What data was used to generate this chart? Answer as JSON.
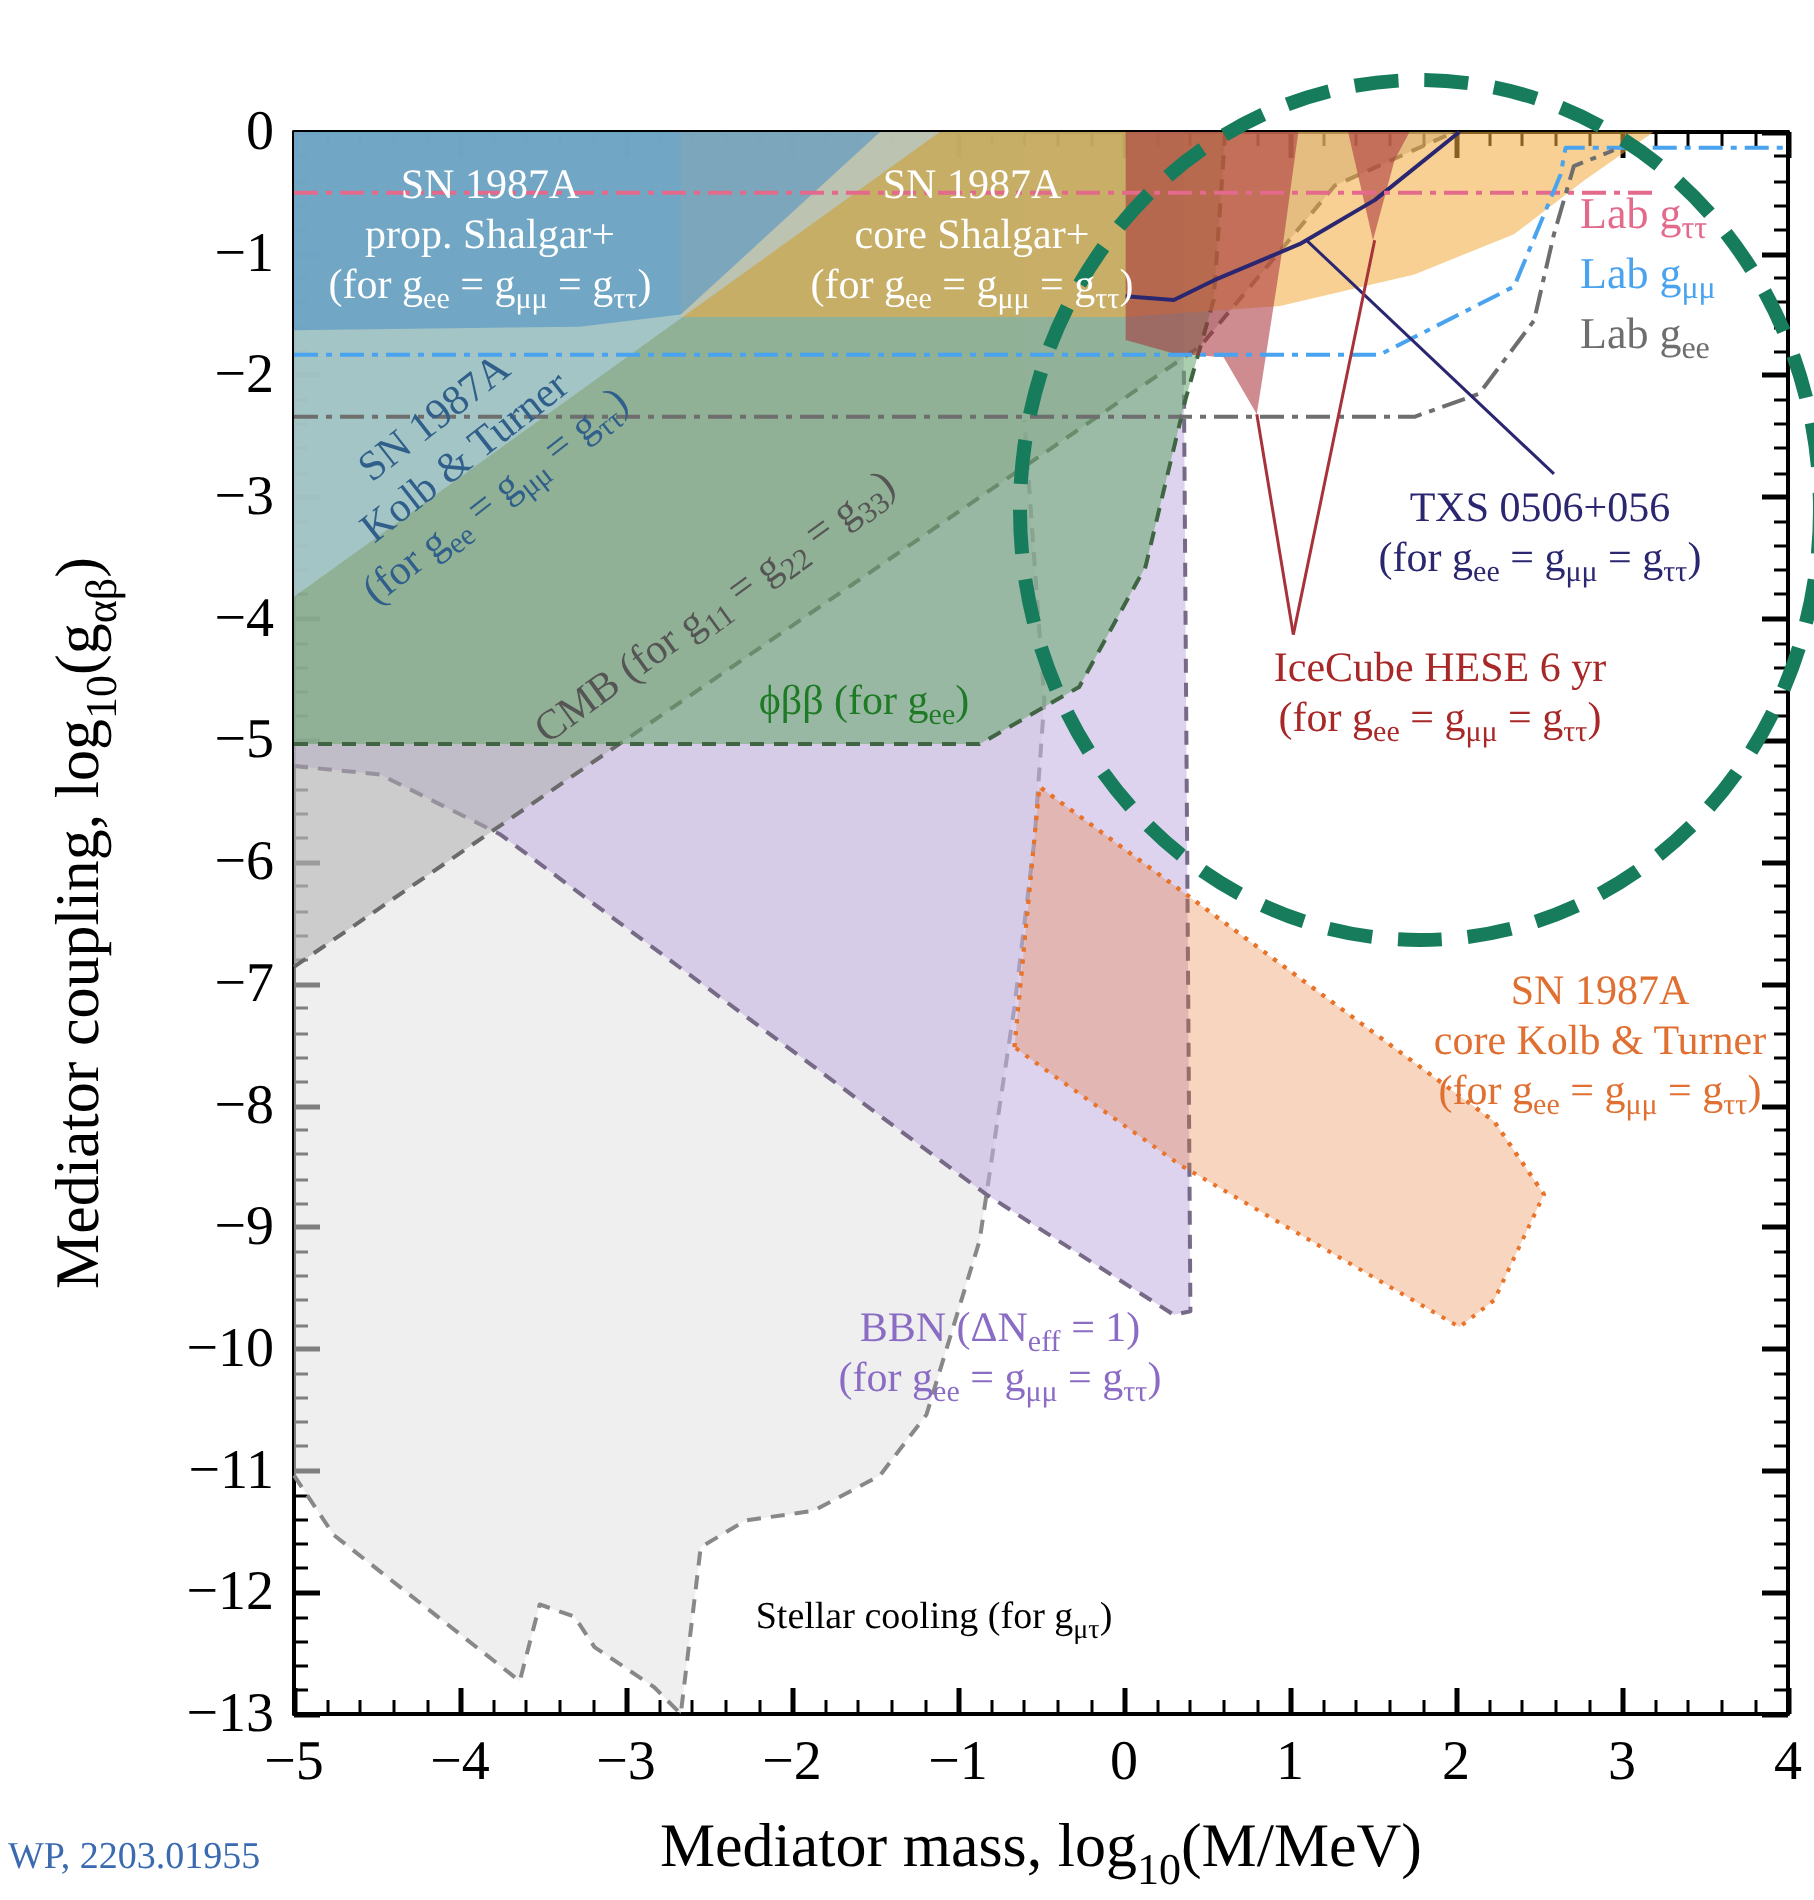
{
  "chart_data": {
    "type": "area",
    "xlabel": "Mediator mass, log$_{10}$(M/MeV)",
    "ylabel": "Mediator coupling, log$_{10}$(g$_{αβ}$)",
    "xlim": [
      -5,
      4
    ],
    "xticks": [
      -5,
      -4,
      -3,
      -2,
      -1,
      0,
      1,
      2,
      3,
      4
    ],
    "ylim": [
      -13,
      0
    ],
    "yticks": [
      -13,
      -12,
      -11,
      -10,
      -9,
      -8,
      -7,
      -6,
      -5,
      -4,
      -3,
      -2,
      -1,
      0
    ],
    "legend": "top right",
    "series": [
      {
        "color": "#e2e2e2",
        "line_style": "dashed",
        "x": [
          -5,
          -4.76,
          -3.64,
          -3.52,
          -3.31,
          -3.19,
          -2.83,
          -2.67,
          -2.55,
          -2.28,
          -1.87,
          -1.47,
          -1.19,
          -0.87,
          -0.66,
          -0.54,
          -0.48,
          -0.6
        ],
        "values": [
          -11.04,
          -11.53,
          -12.73,
          -12.1,
          -12.2,
          -12.45,
          -12.78,
          -13,
          -11.63,
          -11.41,
          -11.33,
          -11.04,
          -10.54,
          -9.11,
          -7.19,
          -5.82,
          -4.67,
          -2.37
        ]
      },
      {
        "color": "#c4b0e0",
        "line_style": "dashed",
        "x": [
          -5,
          -4.48,
          -3.76,
          -0.83,
          0.3,
          0.4,
          0.36
        ],
        "values": [
          -5.21,
          -5.28,
          -5.77,
          -8.73,
          -9.72,
          -9.69,
          -1.9
        ]
      },
      {
        "color": "#b0b0b0",
        "line_style": "dashed",
        "x": [
          -5,
          0.46,
          1.27,
          1.99
        ],
        "values": [
          -6.86,
          -1.76,
          -0.44,
          0
        ]
      },
      {
        "color": "#6aa86e",
        "line_style": "dashed",
        "x": [
          -5,
          -0.87,
          -0.27,
          0.13,
          0.37,
          0.54,
          0.61
        ],
        "values": [
          -5.03,
          -5.03,
          -4.56,
          -3.57,
          -2.2,
          -1.38,
          0
        ]
      },
      {
        "type": "line",
        "color": "#e8742c",
        "line_style": "dotted",
        "x": [
          -0.66,
          -0.51,
          0.34,
          2.02,
          2.23,
          2.53
        ],
        "values": [
          -7.52,
          -5.38,
          -6.23,
          -7.92,
          -8.13,
          -8.73
        ],
        "lower": [
          -7.52,
          -7.67,
          -8.49,
          -9.82,
          -9.6,
          -8.73
        ],
        "upper": [
          -7.52,
          -5.38,
          -6.23,
          -7.92,
          -8.13,
          -8.73
        ]
      },
      {
        "color": "#f2ac40",
        "x": [
          -2.67,
          0,
          0.94,
          1.75,
          2.35,
          2.78,
          3.19
        ],
        "values": [
          -1.52,
          -1.52,
          -1.43,
          -1.17,
          -0.84,
          -0.39,
          0
        ]
      },
      {
        "color": "#b4d4ea",
        "x": [
          -5,
          -1.11
        ],
        "values": [
          -3.82,
          0
        ]
      },
      {
        "color": "#4a8fc6",
        "x": [
          -5,
          -3.28,
          -2.67,
          -1.47
        ],
        "values": [
          -1.63,
          -1.6,
          -1.5,
          0
        ]
      },
      {
        "color": "#a8323a",
        "x": [
          0.01,
          0.3,
          0.6,
          0.8,
          0.95,
          1.05,
          1.35,
          1.5,
          1.63,
          1.72
        ],
        "values": [
          -1.71,
          -1.82,
          -1.85,
          -2.32,
          -1,
          0,
          0,
          -0.89,
          -0.23,
          0
        ]
      },
      {
        "type": "line",
        "color": "#2b2670",
        "line_style": "solid",
        "x": [
          0.01,
          0.3,
          0.54,
          1.06,
          1.51,
          2.02
        ],
        "values": [
          -1.35,
          -1.38,
          -1.22,
          -0.92,
          -0.56,
          0
        ]
      },
      {
        "type": "line",
        "name": "Lab g$_{ττ}$",
        "color": "#e46a8c",
        "line_style": "dashed",
        "x": [
          -5,
          3.2
        ],
        "values": [
          -0.5,
          -0.5
        ]
      },
      {
        "type": "line",
        "name": "Lab g$_{μμ}$",
        "color": "#4aa3ee",
        "line_style": "dashed",
        "x": [
          -5,
          1.54,
          2.35,
          2.63,
          2.66,
          4
        ],
        "values": [
          -1.83,
          -1.83,
          -1.27,
          -0.35,
          -0.13,
          -0.13
        ]
      },
      {
        "type": "line",
        "name": "Lab g$_{ee}$",
        "color": "#6e6e6e",
        "line_style": "dashed",
        "x": [
          -5,
          1.75,
          2.14,
          2.47,
          2.59,
          2.71,
          2.95
        ],
        "values": [
          -2.34,
          -2.34,
          -2.15,
          -1.55,
          -0.84,
          -0.28,
          -0.15
        ]
      }
    ],
    "annotations": [
      "SN 1987A\nprop. Shalgar+\n(for g$_{ee}$ = g$_{μμ}$ = g$_{ττ}$)",
      "SN 1987A\ncore Shalgar+\n(for g$_{ee}$ = g$_{μμ}$ = g$_{ττ}$)",
      "SN 1987A\nKolb & Turner\n(for g$_{ee}$ = g$_{μμ}$ = g$_{ττ}$)",
      "CMB (for g$_{11}$ = g$_{22}$ = g$_{33}$)",
      "ϕββ (for g$_{ee}$)",
      "Stellar cooling (for g$_{μτ}$)",
      "BBN (ΔN$_{eff}$ = 1)\n(for g$_{ee}$ = g$_{μμ}$ = g$_{ττ}$)",
      "SN 1987A\ncore Kolb & Turner\n(for g$_{ee}$ = g$_{μμ}$ = g$_{ττ}$)",
      {
        "text": "TXS 0506+056\n(for g$_{ee}$ = g$_{μμ}$ = g$_{ττ}$)",
        "x": 1.1,
        "y": -0.89
      },
      {
        "text": "IceCube HESE 6 yr\n(for g$_{ee}$ = g$_{μμ}$ = g$_{ττ}$)",
        "x": 0.8,
        "y": -2.32
      },
      "WP, 2203.01955"
    ]
  }
}
